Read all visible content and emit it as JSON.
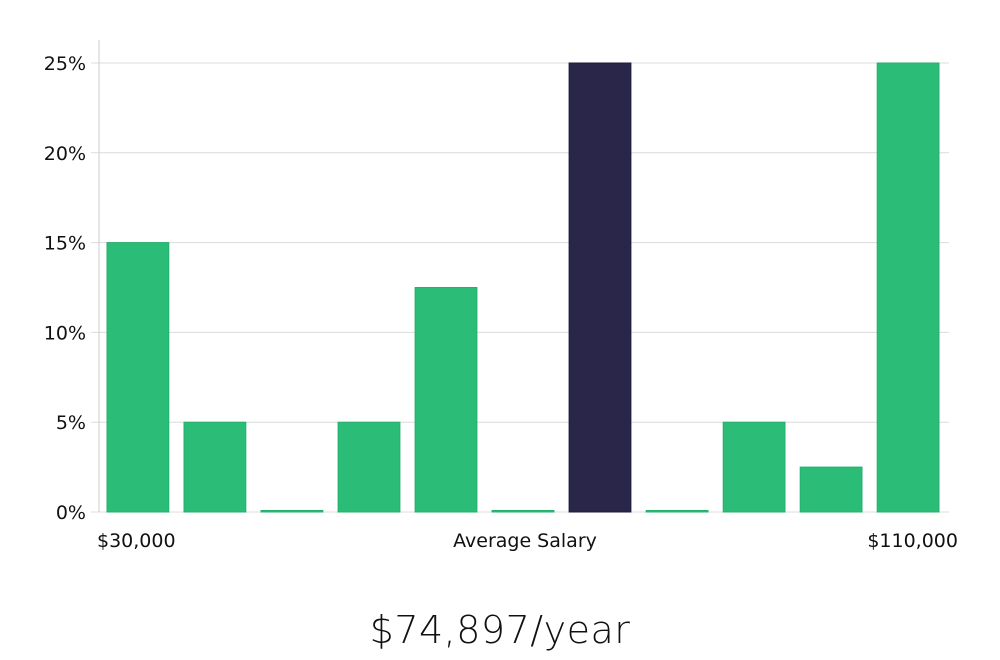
{
  "chart_data": {
    "type": "bar",
    "x_start_label": "$30,000",
    "x_center_label": "Average Salary",
    "x_end_label": "$110,000",
    "y_ticks": [
      "0%",
      "5%",
      "10%",
      "15%",
      "20%",
      "25%"
    ],
    "ylim": [
      0,
      25
    ],
    "grid": true,
    "values": [
      15,
      5,
      0,
      5,
      12.5,
      0,
      25,
      0,
      5,
      2.5,
      25
    ],
    "highlight_index": 6,
    "colors": {
      "bar": "#2bbd77",
      "highlight": "#29264a",
      "grid": "#dcdcdc",
      "axis": "#cccccc"
    }
  },
  "average_salary": "$74,897/year"
}
